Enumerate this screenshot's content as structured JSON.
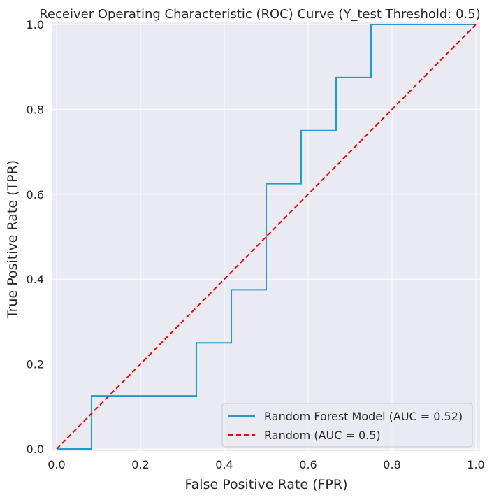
{
  "chart_data": {
    "type": "line",
    "title": "Receiver Operating Characteristic (ROC) Curve (Y_test Threshold: 0.5)",
    "xlabel": "False Positive Rate (FPR)",
    "ylabel": "True Positive Rate (TPR)",
    "xlim": [
      -0.01,
      1.01
    ],
    "ylim": [
      -0.005,
      1.005
    ],
    "grid": true,
    "legend_position": "lower-right",
    "x_ticks": [
      {
        "value": 0.0,
        "label": "0.0"
      },
      {
        "value": 0.2,
        "label": "0.2"
      },
      {
        "value": 0.4,
        "label": "0.4"
      },
      {
        "value": 0.6,
        "label": "0.6"
      },
      {
        "value": 0.8,
        "label": "0.8"
      },
      {
        "value": 1.0,
        "label": "1.0"
      }
    ],
    "y_ticks": [
      {
        "value": 0.0,
        "label": "0.0"
      },
      {
        "value": 0.2,
        "label": "0.2"
      },
      {
        "value": 0.4,
        "label": "0.4"
      },
      {
        "value": 0.6,
        "label": "0.6"
      },
      {
        "value": 0.8,
        "label": "0.8"
      },
      {
        "value": 1.0,
        "label": "1.0"
      }
    ],
    "series": [
      {
        "name": "Random Forest Model (AUC = 0.52)",
        "color": "#1f9bd1",
        "style": "solid",
        "x": [
          0.0,
          0.0833,
          0.0833,
          0.3333,
          0.3333,
          0.4167,
          0.4167,
          0.5,
          0.5,
          0.5833,
          0.5833,
          0.6667,
          0.6667,
          0.75,
          0.75,
          1.0
        ],
        "y": [
          0.0,
          0.0,
          0.125,
          0.125,
          0.25,
          0.25,
          0.375,
          0.375,
          0.625,
          0.625,
          0.75,
          0.75,
          0.875,
          0.875,
          1.0,
          1.0
        ]
      },
      {
        "name": "Random (AUC = 0.5)",
        "color": "#ff0000",
        "style": "dashed",
        "x": [
          0.0,
          1.0
        ],
        "y": [
          0.0,
          1.0
        ]
      }
    ]
  }
}
